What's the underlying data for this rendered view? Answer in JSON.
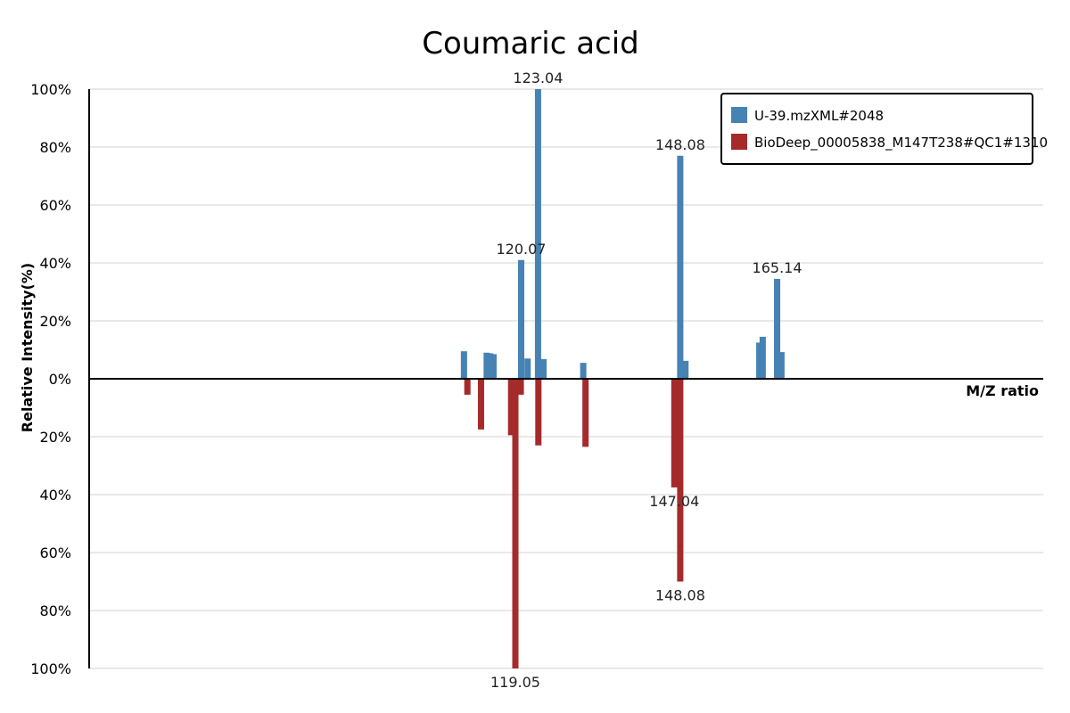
{
  "chart_data": {
    "type": "bar",
    "title": "Coumaric acid",
    "ylabel": "Relative Intensity(%)",
    "xlabel": "M/Z ratio",
    "mz_range": [
      44,
      212
    ],
    "y_ticks_top": [
      "100%",
      "80%",
      "60%",
      "40%",
      "20%",
      "0%"
    ],
    "y_ticks_bottom": [
      "20%",
      "40%",
      "60%",
      "80%",
      "100%"
    ],
    "grid": true,
    "legend_position": "top-right",
    "series": [
      {
        "name": "U-39.mzXML#2048",
        "direction": "up",
        "color": "#4682b4",
        "peaks": [
          {
            "mz": 110.0,
            "intensity": 9.5
          },
          {
            "mz": 114.0,
            "intensity": 9.0
          },
          {
            "mz": 114.6,
            "intensity": 8.8
          },
          {
            "mz": 115.2,
            "intensity": 8.5
          },
          {
            "mz": 120.07,
            "intensity": 41,
            "label": "120.07"
          },
          {
            "mz": 121.2,
            "intensity": 7.0
          },
          {
            "mz": 123.04,
            "intensity": 100,
            "label": "123.04"
          },
          {
            "mz": 124.0,
            "intensity": 6.8
          },
          {
            "mz": 131.0,
            "intensity": 5.5
          },
          {
            "mz": 148.08,
            "intensity": 77,
            "label": "148.08"
          },
          {
            "mz": 149.0,
            "intensity": 6.2
          },
          {
            "mz": 162.0,
            "intensity": 12.5
          },
          {
            "mz": 162.6,
            "intensity": 14.5
          },
          {
            "mz": 165.14,
            "intensity": 34.5,
            "label": "165.14"
          },
          {
            "mz": 165.9,
            "intensity": 9.2
          }
        ]
      },
      {
        "name": "BioDeep_00005838_M147T238#QC1#1310",
        "direction": "down",
        "color": "#a52a2a",
        "peaks": [
          {
            "mz": 110.6,
            "intensity": 5.5
          },
          {
            "mz": 113.0,
            "intensity": 17.5
          },
          {
            "mz": 118.3,
            "intensity": 19.5
          },
          {
            "mz": 119.05,
            "intensity": 100,
            "label": "119.05"
          },
          {
            "mz": 120.0,
            "intensity": 5.5
          },
          {
            "mz": 123.1,
            "intensity": 23.0
          },
          {
            "mz": 131.4,
            "intensity": 23.5
          },
          {
            "mz": 147.04,
            "intensity": 37.5,
            "label": "147.04"
          },
          {
            "mz": 148.08,
            "intensity": 70,
            "label": "148.08"
          }
        ]
      }
    ]
  }
}
